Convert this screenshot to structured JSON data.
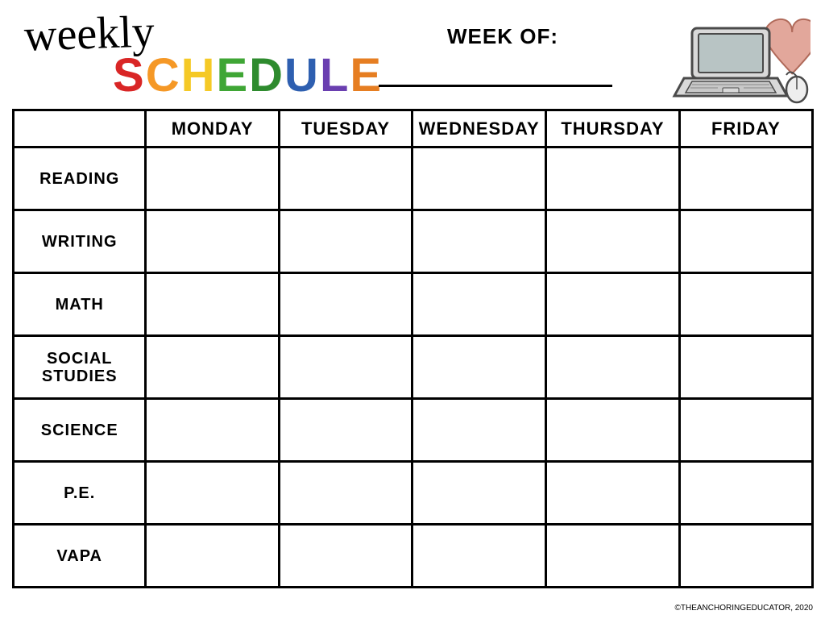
{
  "header": {
    "title_weekly": "weekly",
    "title_schedule_letters": [
      {
        "char": "S",
        "color": "#d92626"
      },
      {
        "char": "C",
        "color": "#f59826"
      },
      {
        "char": "H",
        "color": "#f5c926"
      },
      {
        "char": "E",
        "color": "#3fa635"
      },
      {
        "char": "D",
        "color": "#2e8b2e"
      },
      {
        "char": "U",
        "color": "#2e5fb0"
      },
      {
        "char": "L",
        "color": "#6a3fb0"
      },
      {
        "char": "E",
        "color": "#e67e22"
      }
    ],
    "week_of_label": "WEEK OF:",
    "week_of_value": ""
  },
  "graphic": {
    "heart_color": "#d88a7a",
    "laptop_body": "#d9d9d9",
    "laptop_screen": "#b8c4c4",
    "laptop_keyboard": "#c8c8c8",
    "mouse_color": "#eeeeee",
    "outline": "#4a4a4a"
  },
  "table": {
    "type": "table",
    "background_color": "#ffffff",
    "border_color": "#000000",
    "border_width": 3,
    "columns": [
      "",
      "MONDAY",
      "TUESDAY",
      "WEDNESDAY",
      "THURSDAY",
      "FRIDAY"
    ],
    "rows": [
      {
        "subject": "READING",
        "cells": [
          "",
          "",
          "",
          "",
          ""
        ]
      },
      {
        "subject": "WRITING",
        "cells": [
          "",
          "",
          "",
          "",
          ""
        ]
      },
      {
        "subject": "MATH",
        "cells": [
          "",
          "",
          "",
          "",
          ""
        ]
      },
      {
        "subject": "SOCIAL STUDIES",
        "cells": [
          "",
          "",
          "",
          "",
          ""
        ]
      },
      {
        "subject": "SCIENCE",
        "cells": [
          "",
          "",
          "",
          "",
          ""
        ]
      },
      {
        "subject": "P.E.",
        "cells": [
          "",
          "",
          "",
          "",
          ""
        ]
      },
      {
        "subject": "VAPA",
        "cells": [
          "",
          "",
          "",
          "",
          ""
        ]
      }
    ],
    "header_fontsize": 22,
    "row_header_fontsize": 20,
    "text_color": "#000000"
  },
  "footer": {
    "credit": "©THEANCHORINGEDUCATOR, 2020"
  }
}
